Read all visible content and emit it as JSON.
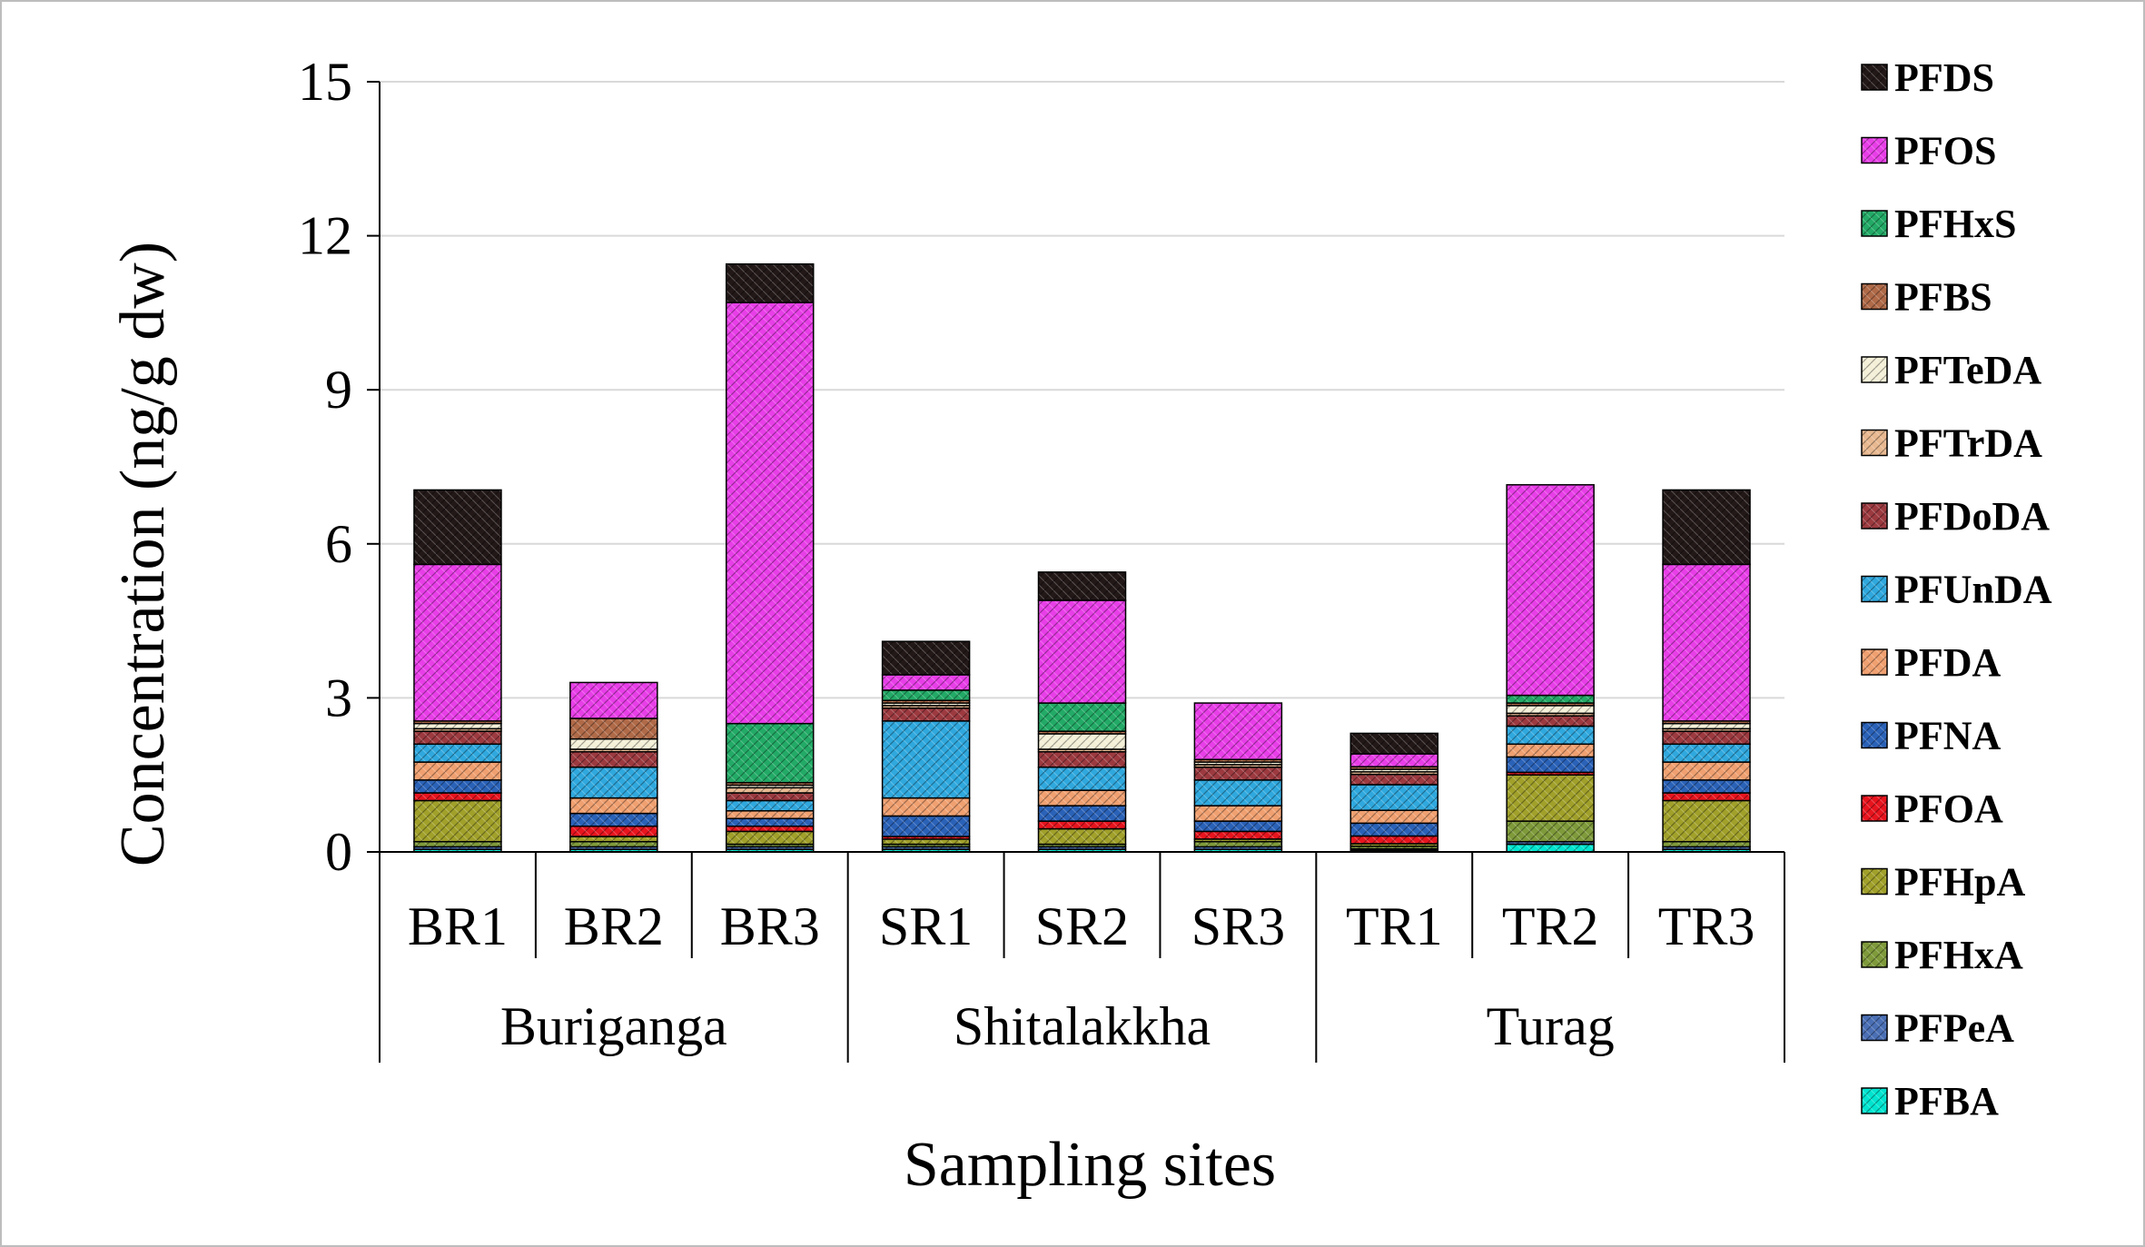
{
  "chart_data": {
    "type": "bar",
    "stacked": true,
    "xlabel": "Sampling sites",
    "ylabel": "Concentration (ng/g dw)",
    "ylim": [
      0,
      15
    ],
    "yticks": [
      "0",
      "3",
      "6",
      "9",
      "12",
      "15"
    ],
    "grid": true,
    "legend_position": "right",
    "categories": [
      "BR1",
      "BR2",
      "BR3",
      "SR1",
      "SR2",
      "SR3",
      "TR1",
      "TR2",
      "TR3"
    ],
    "groups": [
      {
        "name": "Buriganga",
        "categories": [
          "BR1",
          "BR2",
          "BR3"
        ]
      },
      {
        "name": "Shitalakkha",
        "categories": [
          "SR1",
          "SR2",
          "SR3"
        ]
      },
      {
        "name": "Turag",
        "categories": [
          "TR1",
          "TR2",
          "TR3"
        ]
      }
    ],
    "series": [
      {
        "name": "PFBA",
        "color": "#00e5d0",
        "values": [
          0.05,
          0.05,
          0.05,
          0.05,
          0.05,
          0.05,
          0.03,
          0.15,
          0.05
        ]
      },
      {
        "name": "PFPeA",
        "color": "#4a6fb5",
        "values": [
          0.05,
          0.05,
          0.05,
          0.05,
          0.05,
          0.05,
          0.03,
          0.05,
          0.05
        ]
      },
      {
        "name": "PFHxA",
        "color": "#7e9a3a",
        "values": [
          0.1,
          0.1,
          0.05,
          0.05,
          0.05,
          0.1,
          0.05,
          0.4,
          0.1
        ]
      },
      {
        "name": "PFHpA",
        "color": "#a0a02a",
        "values": [
          0.8,
          0.1,
          0.25,
          0.1,
          0.3,
          0.05,
          0.05,
          0.9,
          0.8
        ]
      },
      {
        "name": "PFOA",
        "color": "#e8141e",
        "values": [
          0.15,
          0.2,
          0.1,
          0.05,
          0.15,
          0.15,
          0.15,
          0.05,
          0.15
        ]
      },
      {
        "name": "PFNA",
        "color": "#2a62b8",
        "values": [
          0.25,
          0.25,
          0.15,
          0.4,
          0.3,
          0.2,
          0.25,
          0.3,
          0.25
        ]
      },
      {
        "name": "PFDA",
        "color": "#f0a070",
        "values": [
          0.35,
          0.3,
          0.15,
          0.35,
          0.3,
          0.3,
          0.25,
          0.25,
          0.35
        ]
      },
      {
        "name": "PFUnDA",
        "color": "#2fa8de",
        "values": [
          0.35,
          0.6,
          0.2,
          1.5,
          0.45,
          0.5,
          0.5,
          0.35,
          0.35
        ]
      },
      {
        "name": "PFDoDA",
        "color": "#9c3a40",
        "values": [
          0.25,
          0.3,
          0.15,
          0.25,
          0.3,
          0.25,
          0.2,
          0.2,
          0.25
        ]
      },
      {
        "name": "PFTrDA",
        "color": "#e8b890",
        "values": [
          0.05,
          0.05,
          0.1,
          0.05,
          0.05,
          0.05,
          0.05,
          0.05,
          0.05
        ]
      },
      {
        "name": "PFTeDA",
        "color": "#f4f0d8",
        "values": [
          0.1,
          0.2,
          0.05,
          0.05,
          0.3,
          0.05,
          0.05,
          0.15,
          0.1
        ]
      },
      {
        "name": "PFBS",
        "color": "#b06a48",
        "values": [
          0.05,
          0.4,
          0.05,
          0.05,
          0.05,
          0.05,
          0.05,
          0.05,
          0.05
        ]
      },
      {
        "name": "PFHxS",
        "color": "#22aa66",
        "values": [
          0.0,
          0.0,
          1.15,
          0.2,
          0.55,
          0.0,
          0.0,
          0.15,
          0.0
        ]
      },
      {
        "name": "PFOS",
        "color": "#e83ee8",
        "values": [
          3.05,
          0.7,
          8.2,
          0.3,
          2.0,
          1.1,
          0.25,
          4.1,
          3.05
        ]
      },
      {
        "name": "PFDS",
        "color": "#231818",
        "values": [
          1.45,
          0.0,
          0.75,
          0.65,
          0.55,
          0.0,
          0.4,
          0.0,
          1.45
        ]
      }
    ]
  }
}
